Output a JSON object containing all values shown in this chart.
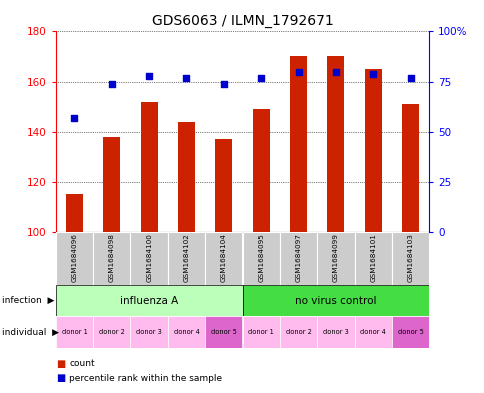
{
  "title": "GDS6063 / ILMN_1792671",
  "samples": [
    "GSM1684096",
    "GSM1684098",
    "GSM1684100",
    "GSM1684102",
    "GSM1684104",
    "GSM1684095",
    "GSM1684097",
    "GSM1684099",
    "GSM1684101",
    "GSM1684103"
  ],
  "counts": [
    115,
    138,
    152,
    144,
    137,
    149,
    170,
    170,
    165,
    151
  ],
  "percentiles": [
    57,
    74,
    78,
    77,
    74,
    77,
    80,
    80,
    79,
    77
  ],
  "ylim_left": [
    100,
    180
  ],
  "ylim_right": [
    0,
    100
  ],
  "yticks_left": [
    100,
    120,
    140,
    160,
    180
  ],
  "yticks_right": [
    0,
    25,
    50,
    75,
    100
  ],
  "ytick_labels_right": [
    "0",
    "25",
    "50",
    "75",
    "100%"
  ],
  "bar_color": "#cc2200",
  "dot_color": "#0000cc",
  "infection_groups": [
    {
      "label": "influenza A",
      "start": 0,
      "end": 5,
      "color": "#bbffbb"
    },
    {
      "label": "no virus control",
      "start": 5,
      "end": 10,
      "color": "#44dd44"
    }
  ],
  "individual_labels": [
    "donor 1",
    "donor 2",
    "donor 3",
    "donor 4",
    "donor 5",
    "donor 1",
    "donor 2",
    "donor 3",
    "donor 4",
    "donor 5"
  ],
  "individual_colors": [
    "#ffbbee",
    "#ffbbee",
    "#ffbbee",
    "#ffbbee",
    "#dd66cc",
    "#ffbbee",
    "#ffbbee",
    "#ffbbee",
    "#ffbbee",
    "#dd66cc"
  ],
  "bg_color": "#ffffff",
  "sample_label_bg": "#cccccc",
  "legend_items": [
    {
      "label": "count",
      "color": "#cc2200"
    },
    {
      "label": "percentile rank within the sample",
      "color": "#0000cc"
    }
  ],
  "title_fontsize": 10,
  "tick_fontsize": 7.5,
  "bar_width": 0.45
}
